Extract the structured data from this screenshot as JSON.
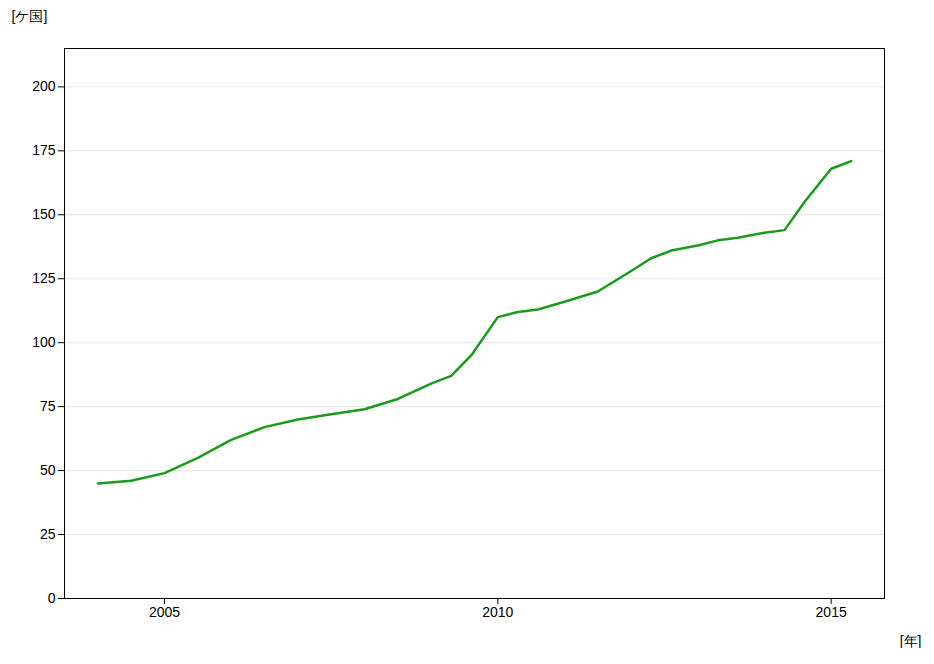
{
  "chart_data": {
    "type": "line",
    "x": [
      2004,
      2004.5,
      2005,
      2005.5,
      2006,
      2006.5,
      2007,
      2007.5,
      2008,
      2008.5,
      2009,
      2009.3,
      2009.6,
      2010,
      2010.3,
      2010.6,
      2011,
      2011.5,
      2012,
      2012.3,
      2012.6,
      2013,
      2013.3,
      2013.6,
      2014,
      2014.3,
      2014.6,
      2015,
      2015.3
    ],
    "values": [
      45,
      46,
      49,
      55,
      62,
      67,
      70,
      72,
      74,
      78,
      84,
      87,
      95,
      110,
      112,
      113,
      116,
      120,
      128,
      133,
      136,
      138,
      140,
      141,
      143,
      144,
      155,
      168,
      171
    ],
    "color": "#1a9a1a",
    "xlabel": "[年]",
    "ylabel": "[ケ国]",
    "xlim": [
      2003.5,
      2015.8
    ],
    "ylim": [
      0,
      215
    ],
    "xticks": [
      2005,
      2010,
      2015
    ],
    "yticks": [
      0,
      25,
      50,
      75,
      100,
      125,
      150,
      175,
      200
    ],
    "grid": true
  }
}
